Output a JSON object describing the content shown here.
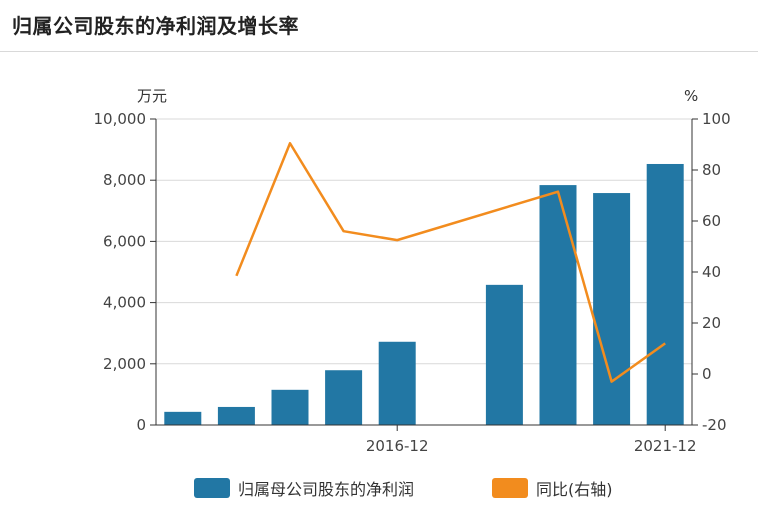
{
  "title": "归属公司股东的净利润及增长率",
  "chart_data": {
    "type": "bar",
    "categories": [
      "",
      "",
      "",
      "",
      "2016-12",
      "",
      "",
      "",
      "",
      "2021-12"
    ],
    "left_unit": "万元",
    "right_unit": "%",
    "left_ticks": [
      "10,000",
      "8,000",
      "6,000",
      "4,000",
      "2,000",
      "0"
    ],
    "right_ticks": [
      "100",
      "80",
      "60",
      "40",
      "20",
      "0",
      "-20"
    ],
    "ylim_left": [
      0,
      10000
    ],
    "ylim_right": [
      -20,
      100
    ],
    "series": [
      {
        "name": "归属母公司股东的净利润",
        "type": "bar",
        "axis": "left",
        "color": "#2277a4",
        "values": [
          430,
          590,
          1150,
          1790,
          2720,
          null,
          4580,
          7840,
          7580,
          8530
        ]
      },
      {
        "name": "同比(右轴)",
        "type": "line",
        "axis": "right",
        "color": "#f28c1e",
        "values": [
          null,
          38.5,
          90.5,
          56,
          52.5,
          null,
          null,
          71.5,
          -3,
          12
        ]
      }
    ],
    "grid": true,
    "legend": "bottom"
  }
}
